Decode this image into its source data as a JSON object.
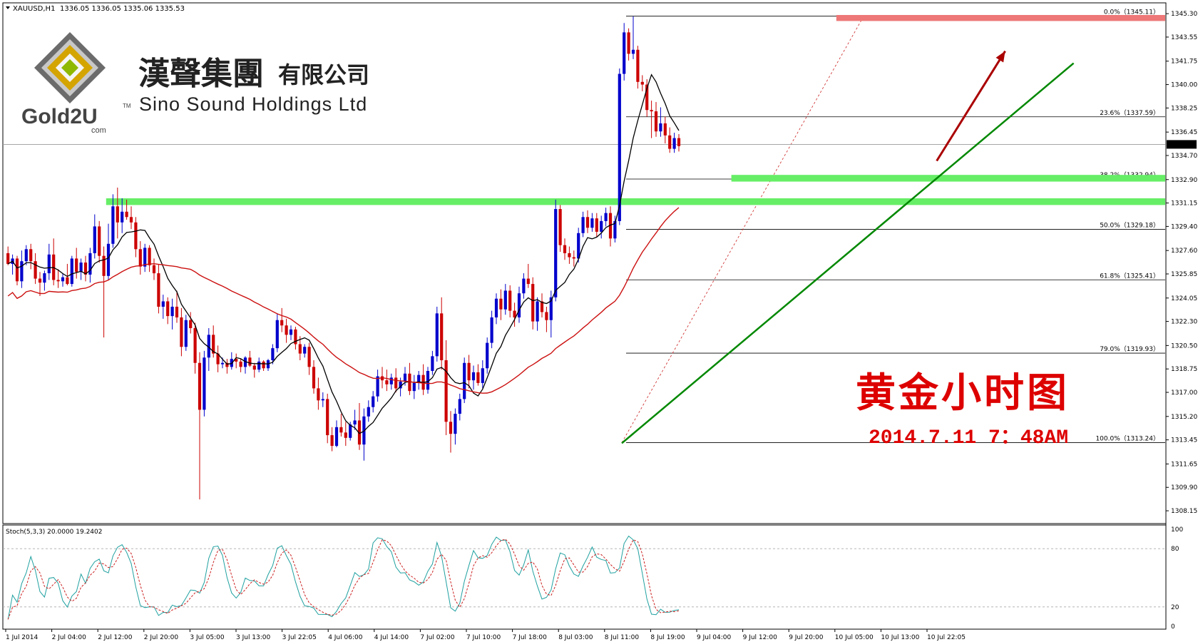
{
  "header": {
    "symbol": "XAUUSD,H1",
    "ohlc": "1336.05 1336.05 1335.06 1335.53"
  },
  "logo": {
    "cn_name": "漢聲集團",
    "cn_suffix": "有限公司",
    "en_name": "Sino Sound Holdings Ltd",
    "brand": "Gold2U",
    "tm": "TM",
    "dotcom": "com"
  },
  "annotation": {
    "title": "黄金小时图",
    "datetime": "2014.7.11 7：48AM"
  },
  "colors": {
    "bull": "#0000cc",
    "bear": "#cc0000",
    "ma_fast": "#000000",
    "ma_slow": "#cc1010",
    "trendline": "#008800",
    "zone_green": "#66ee66",
    "zone_red": "#ee7777",
    "arrow": "#aa0000",
    "stoch_main": "#20a0a0",
    "stoch_signal": "#cc2020"
  },
  "chart_data": {
    "type": "candlestick",
    "ylim": [
      1307.3,
      1346.0
    ],
    "y_ticks": [
      "1345.30",
      "1343.55",
      "1341.75",
      "1340.00",
      "1338.25",
      "1336.45",
      "1334.70",
      "1332.90",
      "1331.15",
      "1329.40",
      "1327.60",
      "1325.85",
      "1324.05",
      "1322.30",
      "1320.50",
      "1318.75",
      "1317.00",
      "1315.20",
      "1313.45",
      "1311.65",
      "1309.90",
      "1308.15"
    ],
    "x_ticks": [
      "1 Jul 2014",
      "2 Jul 04:00",
      "2 Jul 12:00",
      "2 Jul 20:00",
      "3 Jul 05:00",
      "3 Jul 13:00",
      "3 Jul 22:05",
      "4 Jul 06:00",
      "4 Jul 14:00",
      "7 Jul 02:00",
      "7 Jul 10:00",
      "7 Jul 18:00",
      "8 Jul 03:00",
      "8 Jul 11:00",
      "8 Jul 19:00",
      "9 Jul 04:00",
      "9 Jul 12:00",
      "9 Jul 20:00",
      "10 Jul 05:00",
      "10 Jul 13:00",
      "10 Jul 22:05"
    ],
    "current_price": "1335.53",
    "fibonacci": [
      {
        "label": "0.0%（1345.11）",
        "value": 1345.11
      },
      {
        "label": "23.6%（1337.59）",
        "value": 1337.59
      },
      {
        "label": "38.2%（1332.94）",
        "value": 1332.94
      },
      {
        "label": "50.0%（1329.18）",
        "value": 1329.18
      },
      {
        "label": "61.8%（1325.41）",
        "value": 1325.41
      },
      {
        "label": "79.0%（1319.93）",
        "value": 1319.93
      },
      {
        "label": "100.0%（1313.24）",
        "value": 1313.24
      }
    ],
    "zones": [
      {
        "kind": "support",
        "low": 1331.0,
        "high": 1331.5,
        "from_bar": 22,
        "to_bar": 255
      },
      {
        "kind": "support",
        "low": 1332.75,
        "high": 1333.25,
        "from_bar": 159,
        "to_bar": 255
      },
      {
        "kind": "resistance",
        "low": 1344.75,
        "high": 1345.2,
        "from_bar": 182,
        "to_bar": 255
      }
    ],
    "trendline": {
      "p1": [
        135,
        1313.2
      ],
      "p2": [
        234,
        1341.6
      ]
    },
    "arrow": {
      "p1": [
        204,
        1334.3
      ],
      "p2": [
        219,
        1342.5
      ]
    },
    "candles": [
      [
        1327.4,
        1327.9,
        1326.5,
        1326.6
      ],
      [
        1326.6,
        1327.3,
        1325.8,
        1327.0
      ],
      [
        1327.0,
        1327.2,
        1325.0,
        1325.3
      ],
      [
        1325.3,
        1327.6,
        1324.8,
        1326.8
      ],
      [
        1326.8,
        1328.0,
        1326.5,
        1327.7
      ],
      [
        1327.7,
        1328.1,
        1326.2,
        1326.8
      ],
      [
        1326.8,
        1327.4,
        1325.1,
        1325.5
      ],
      [
        1325.5,
        1326.0,
        1324.2,
        1325.2
      ],
      [
        1325.2,
        1326.1,
        1324.6,
        1325.9
      ],
      [
        1325.9,
        1328.1,
        1325.4,
        1327.3
      ],
      [
        1327.3,
        1328.5,
        1325.0,
        1325.4
      ],
      [
        1325.4,
        1326.2,
        1324.8,
        1325.3
      ],
      [
        1325.3,
        1325.9,
        1324.9,
        1325.6
      ],
      [
        1325.6,
        1326.6,
        1325.0,
        1325.1
      ],
      [
        1325.1,
        1327.2,
        1324.9,
        1327.0
      ],
      [
        1327.0,
        1327.8,
        1325.5,
        1326.0
      ],
      [
        1326.0,
        1327.0,
        1325.4,
        1326.7
      ],
      [
        1326.7,
        1327.2,
        1325.3,
        1325.8
      ],
      [
        1325.8,
        1327.8,
        1325.2,
        1327.4
      ],
      [
        1327.4,
        1330.3,
        1327.0,
        1329.4
      ],
      [
        1329.4,
        1329.8,
        1326.7,
        1327.2
      ],
      [
        1327.2,
        1327.9,
        1321.1,
        1325.7
      ],
      [
        1325.7,
        1329.6,
        1325.4,
        1328.1
      ],
      [
        1328.1,
        1331.8,
        1327.8,
        1330.9
      ],
      [
        1330.9,
        1332.3,
        1328.5,
        1329.7
      ],
      [
        1329.7,
        1331.5,
        1328.9,
        1330.5
      ],
      [
        1330.5,
        1331.4,
        1329.9,
        1330.1
      ],
      [
        1330.1,
        1330.9,
        1329.2,
        1329.7
      ],
      [
        1329.7,
        1330.1,
        1327.1,
        1327.7
      ],
      [
        1327.7,
        1328.3,
        1325.8,
        1326.4
      ],
      [
        1326.4,
        1328.1,
        1326.0,
        1327.8
      ],
      [
        1327.8,
        1328.0,
        1326.0,
        1326.5
      ],
      [
        1326.5,
        1327.0,
        1325.4,
        1325.9
      ],
      [
        1325.9,
        1326.6,
        1322.9,
        1323.4
      ],
      [
        1323.4,
        1324.3,
        1322.5,
        1323.8
      ],
      [
        1323.8,
        1324.1,
        1322.1,
        1322.7
      ],
      [
        1322.7,
        1324.0,
        1321.7,
        1323.4
      ],
      [
        1323.4,
        1324.6,
        1322.2,
        1322.6
      ],
      [
        1322.6,
        1323.3,
        1319.7,
        1320.4
      ],
      [
        1320.4,
        1322.8,
        1320.1,
        1322.4
      ],
      [
        1322.4,
        1323.0,
        1321.4,
        1321.8
      ],
      [
        1321.8,
        1322.2,
        1318.4,
        1319.2
      ],
      [
        1319.2,
        1320.0,
        1309.0,
        1315.7
      ],
      [
        1315.7,
        1320.1,
        1315.2,
        1319.6
      ],
      [
        1319.6,
        1321.8,
        1318.6,
        1321.3
      ],
      [
        1321.3,
        1322.0,
        1319.6,
        1319.9
      ],
      [
        1319.9,
        1320.5,
        1318.5,
        1319.1
      ],
      [
        1319.1,
        1319.6,
        1318.8,
        1319.2
      ],
      [
        1319.2,
        1319.5,
        1318.4,
        1318.9
      ],
      [
        1318.9,
        1320.0,
        1318.7,
        1319.5
      ],
      [
        1319.5,
        1319.9,
        1318.8,
        1319.3
      ],
      [
        1319.3,
        1319.5,
        1318.5,
        1318.9
      ],
      [
        1318.9,
        1319.7,
        1318.4,
        1319.6
      ],
      [
        1319.6,
        1320.1,
        1318.9,
        1319.0
      ],
      [
        1319.0,
        1319.2,
        1318.1,
        1318.7
      ],
      [
        1318.7,
        1319.6,
        1318.5,
        1319.3
      ],
      [
        1319.3,
        1319.4,
        1318.6,
        1318.8
      ],
      [
        1318.8,
        1319.5,
        1318.6,
        1319.4
      ],
      [
        1319.4,
        1320.6,
        1319.1,
        1320.3
      ],
      [
        1320.3,
        1322.9,
        1320.0,
        1322.4
      ],
      [
        1322.4,
        1323.3,
        1321.5,
        1322.0
      ],
      [
        1322.0,
        1322.5,
        1320.7,
        1321.3
      ],
      [
        1321.3,
        1322.0,
        1320.9,
        1321.7
      ],
      [
        1321.7,
        1321.9,
        1320.2,
        1320.6
      ],
      [
        1320.6,
        1321.2,
        1319.4,
        1319.9
      ],
      [
        1319.9,
        1320.6,
        1319.6,
        1320.4
      ],
      [
        1320.4,
        1320.7,
        1318.3,
        1318.9
      ],
      [
        1318.9,
        1319.4,
        1316.9,
        1317.3
      ],
      [
        1317.3,
        1318.1,
        1315.7,
        1316.4
      ],
      [
        1316.4,
        1317.0,
        1315.9,
        1316.5
      ],
      [
        1316.5,
        1316.9,
        1313.2,
        1313.8
      ],
      [
        1313.8,
        1314.4,
        1312.6,
        1313.0
      ],
      [
        1313.0,
        1314.9,
        1312.9,
        1314.4
      ],
      [
        1314.4,
        1315.4,
        1313.7,
        1314.0
      ],
      [
        1314.0,
        1314.8,
        1313.0,
        1313.6
      ],
      [
        1313.6,
        1314.8,
        1313.4,
        1314.6
      ],
      [
        1314.6,
        1315.7,
        1314.2,
        1314.9
      ],
      [
        1314.9,
        1316.2,
        1312.7,
        1313.1
      ],
      [
        1313.1,
        1315.8,
        1311.9,
        1315.2
      ],
      [
        1315.2,
        1316.4,
        1314.8,
        1315.9
      ],
      [
        1315.9,
        1317.1,
        1315.5,
        1316.7
      ],
      [
        1316.7,
        1318.7,
        1316.3,
        1318.2
      ],
      [
        1318.2,
        1318.9,
        1317.3,
        1317.9
      ],
      [
        1317.9,
        1318.7,
        1317.1,
        1317.6
      ],
      [
        1317.6,
        1318.4,
        1317.2,
        1318.1
      ],
      [
        1318.1,
        1318.8,
        1317.0,
        1317.3
      ],
      [
        1317.3,
        1318.1,
        1316.7,
        1317.8
      ],
      [
        1317.8,
        1318.9,
        1317.5,
        1318.4
      ],
      [
        1318.4,
        1319.2,
        1316.8,
        1317.1
      ],
      [
        1317.1,
        1318.3,
        1316.5,
        1317.7
      ],
      [
        1317.7,
        1318.6,
        1317.2,
        1318.3
      ],
      [
        1318.3,
        1319.1,
        1316.8,
        1317.2
      ],
      [
        1317.2,
        1318.9,
        1316.9,
        1318.6
      ],
      [
        1318.6,
        1320.1,
        1318.3,
        1319.7
      ],
      [
        1319.7,
        1323.4,
        1319.3,
        1322.9
      ],
      [
        1322.9,
        1324.1,
        1318.7,
        1319.4
      ],
      [
        1319.4,
        1320.9,
        1313.8,
        1314.8
      ],
      [
        1314.8,
        1315.6,
        1312.5,
        1313.9
      ],
      [
        1313.9,
        1315.8,
        1313.1,
        1315.4
      ],
      [
        1315.4,
        1316.9,
        1314.9,
        1316.5
      ],
      [
        1316.5,
        1319.6,
        1316.2,
        1319.2
      ],
      [
        1319.2,
        1319.8,
        1317.3,
        1317.9
      ],
      [
        1317.9,
        1319.0,
        1317.2,
        1318.5
      ],
      [
        1318.5,
        1319.1,
        1317.5,
        1317.7
      ],
      [
        1317.7,
        1319.4,
        1317.3,
        1318.8
      ],
      [
        1318.8,
        1321.1,
        1318.4,
        1320.7
      ],
      [
        1320.7,
        1323.1,
        1320.3,
        1322.6
      ],
      [
        1322.6,
        1324.4,
        1322.1,
        1324.0
      ],
      [
        1324.0,
        1324.7,
        1322.4,
        1323.2
      ],
      [
        1323.2,
        1325.1,
        1322.8,
        1324.6
      ],
      [
        1324.6,
        1325.0,
        1322.6,
        1323.1
      ],
      [
        1323.1,
        1323.7,
        1321.9,
        1322.6
      ],
      [
        1322.6,
        1324.9,
        1322.2,
        1324.4
      ],
      [
        1324.4,
        1325.9,
        1324.0,
        1325.5
      ],
      [
        1325.5,
        1326.6,
        1324.8,
        1325.1
      ],
      [
        1325.1,
        1325.6,
        1321.7,
        1322.3
      ],
      [
        1322.3,
        1324.1,
        1321.6,
        1323.8
      ],
      [
        1323.8,
        1324.4,
        1322.6,
        1323.0
      ],
      [
        1323.0,
        1323.4,
        1321.5,
        1322.4
      ],
      [
        1322.4,
        1324.6,
        1321.1,
        1324.1
      ],
      [
        1324.1,
        1331.4,
        1323.8,
        1330.7
      ],
      [
        1330.7,
        1331.0,
        1327.5,
        1328.0
      ],
      [
        1328.0,
        1328.5,
        1326.9,
        1327.4
      ],
      [
        1327.4,
        1327.9,
        1326.6,
        1327.1
      ],
      [
        1327.1,
        1327.6,
        1326.4,
        1327.0
      ],
      [
        1327.0,
        1329.3,
        1326.7,
        1328.9
      ],
      [
        1328.9,
        1330.5,
        1328.6,
        1330.1
      ],
      [
        1330.1,
        1330.6,
        1328.9,
        1329.3
      ],
      [
        1329.3,
        1330.4,
        1329.0,
        1330.0
      ],
      [
        1330.0,
        1330.4,
        1328.6,
        1329.0
      ],
      [
        1329.0,
        1330.2,
        1328.5,
        1329.8
      ],
      [
        1329.8,
        1330.8,
        1329.4,
        1330.4
      ],
      [
        1330.4,
        1330.9,
        1327.9,
        1328.5
      ],
      [
        1328.5,
        1330.2,
        1328.2,
        1329.8
      ],
      [
        1329.8,
        1341.2,
        1329.5,
        1340.8
      ],
      [
        1340.8,
        1344.6,
        1340.3,
        1343.9
      ],
      [
        1343.9,
        1344.2,
        1341.8,
        1342.3
      ],
      [
        1342.3,
        1345.1,
        1341.9,
        1342.6
      ],
      [
        1342.6,
        1342.9,
        1339.7,
        1340.2
      ],
      [
        1340.2,
        1340.7,
        1339.5,
        1340.0
      ],
      [
        1340.0,
        1340.4,
        1337.6,
        1338.1
      ],
      [
        1338.1,
        1338.8,
        1336.0,
        1338.0
      ],
      [
        1338.0,
        1338.7,
        1336.1,
        1336.5
      ],
      [
        1336.5,
        1338.3,
        1336.1,
        1337.1
      ],
      [
        1337.1,
        1337.6,
        1335.6,
        1336.2
      ],
      [
        1336.2,
        1336.8,
        1334.9,
        1335.2
      ],
      [
        1335.2,
        1336.4,
        1334.9,
        1336.0
      ],
      [
        1336.0,
        1336.3,
        1335.0,
        1335.4
      ]
    ],
    "ma_fast_period": "short",
    "stochastic": {
      "label": "Stoch(5,3,3) 20.0000 19.2402",
      "levels": [
        80,
        20
      ],
      "y_ticks": [
        "100",
        "80",
        "20",
        "0"
      ]
    }
  }
}
